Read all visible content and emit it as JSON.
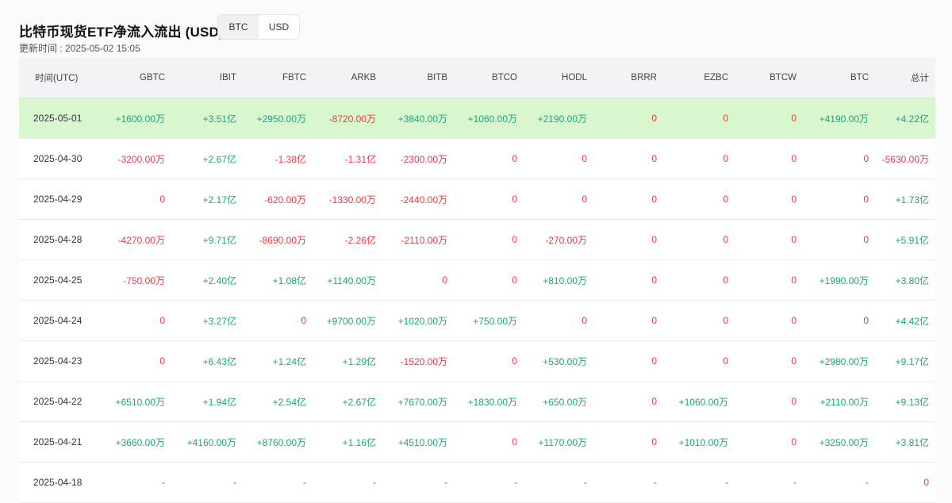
{
  "header": {
    "title": "比特币现货ETF净流入流出 (USD)",
    "updated": "更新时间 : 2025-05-02 15:05",
    "toggle": [
      "BTC",
      "USD"
    ],
    "toggle_active": "USD"
  },
  "colors": {
    "positive": "#1ea47a",
    "negative": "#ea3943",
    "highlight_row": "#d9f7cf"
  },
  "table": {
    "columns": [
      "时间(UTC)",
      "GBTC",
      "IBIT",
      "FBTC",
      "ARKB",
      "BITB",
      "BTCO",
      "HODL",
      "BRRR",
      "EZBC",
      "BTCW",
      "BTC",
      "总计"
    ],
    "rows": [
      [
        "2025-05-01",
        "+1600.00万",
        "+3.51亿",
        "+2950.00万",
        "-8720.00万",
        "+3840.00万",
        "+1060.00万",
        "+2190.00万",
        "0",
        "0",
        "0",
        "+4190.00万",
        "+4.22亿"
      ],
      [
        "2025-04-30",
        "-3200.00万",
        "+2.67亿",
        "-1.38亿",
        "-1.31亿",
        "-2300.00万",
        "0",
        "0",
        "0",
        "0",
        "0",
        "0",
        "-5630.00万"
      ],
      [
        "2025-04-29",
        "0",
        "+2.17亿",
        "-620.00万",
        "-1330.00万",
        "-2440.00万",
        "0",
        "0",
        "0",
        "0",
        "0",
        "0",
        "+1.73亿"
      ],
      [
        "2025-04-28",
        "-4270.00万",
        "+9.71亿",
        "-8690.00万",
        "-2.26亿",
        "-2110.00万",
        "0",
        "-270.00万",
        "0",
        "0",
        "0",
        "0",
        "+5.91亿"
      ],
      [
        "2025-04-25",
        "-750.00万",
        "+2.40亿",
        "+1.08亿",
        "+1140.00万",
        "0",
        "0",
        "+810.00万",
        "0",
        "0",
        "0",
        "+1990.00万",
        "+3.80亿"
      ],
      [
        "2025-04-24",
        "0",
        "+3.27亿",
        "0",
        "+9700.00万",
        "+1020.00万",
        "+750.00万",
        "0",
        "0",
        "0",
        "0",
        "0",
        "+4.42亿"
      ],
      [
        "2025-04-23",
        "0",
        "+6.43亿",
        "+1.24亿",
        "+1.29亿",
        "-1520.00万",
        "0",
        "+530.00万",
        "0",
        "0",
        "0",
        "+2980.00万",
        "+9.17亿"
      ],
      [
        "2025-04-22",
        "+6510.00万",
        "+1.94亿",
        "+2.54亿",
        "+2.67亿",
        "+7670.00万",
        "+1830.00万",
        "+650.00万",
        "0",
        "+1060.00万",
        "0",
        "+2110.00万",
        "+9.13亿"
      ],
      [
        "2025-04-21",
        "+3660.00万",
        "+4160.00万",
        "+8760.00万",
        "+1.16亿",
        "+4510.00万",
        "0",
        "+1170.00万",
        "0",
        "+1010.00万",
        "0",
        "+3250.00万",
        "+3.81亿"
      ],
      [
        "2025-04-18",
        "-",
        "-",
        "-",
        "-",
        "-",
        "-",
        "-",
        "-",
        "-",
        "-",
        "-",
        "0"
      ]
    ],
    "highlighted_row": "2025-05-01"
  }
}
